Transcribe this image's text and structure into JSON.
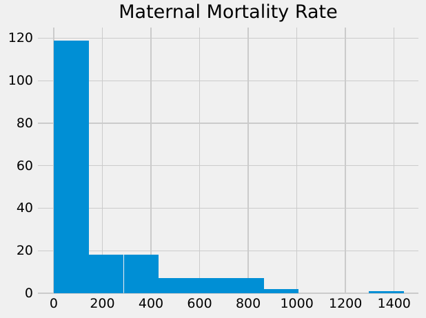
{
  "chart_data": {
    "type": "bar",
    "subtype": "histogram",
    "title": "Maternal Mortality Rate",
    "xlabel": "",
    "ylabel": "",
    "bin_edges": [
      0,
      144,
      288,
      432,
      576,
      720,
      864,
      1008,
      1152,
      1296,
      1440
    ],
    "counts": [
      119,
      18,
      18,
      7,
      7,
      7,
      2,
      0,
      0,
      1
    ],
    "total_count": 179,
    "xticks": [
      "0",
      "200",
      "400",
      "600",
      "800",
      "1000",
      "1200",
      "1400"
    ],
    "xtick_values": [
      0,
      200,
      400,
      600,
      800,
      1000,
      1200,
      1400
    ],
    "yticks": [
      "0",
      "20",
      "40",
      "60",
      "80",
      "100",
      "120"
    ],
    "ytick_values": [
      0,
      20,
      40,
      60,
      80,
      100,
      120
    ],
    "xlim": [
      -65,
      1500
    ],
    "ylim": [
      0,
      125
    ],
    "grid": true,
    "legend": false,
    "style": {
      "bar_color": "#008fd5",
      "background_color": "#f0f0f0",
      "grid_color": "#cbcbcb",
      "text_color": "#000000"
    }
  }
}
